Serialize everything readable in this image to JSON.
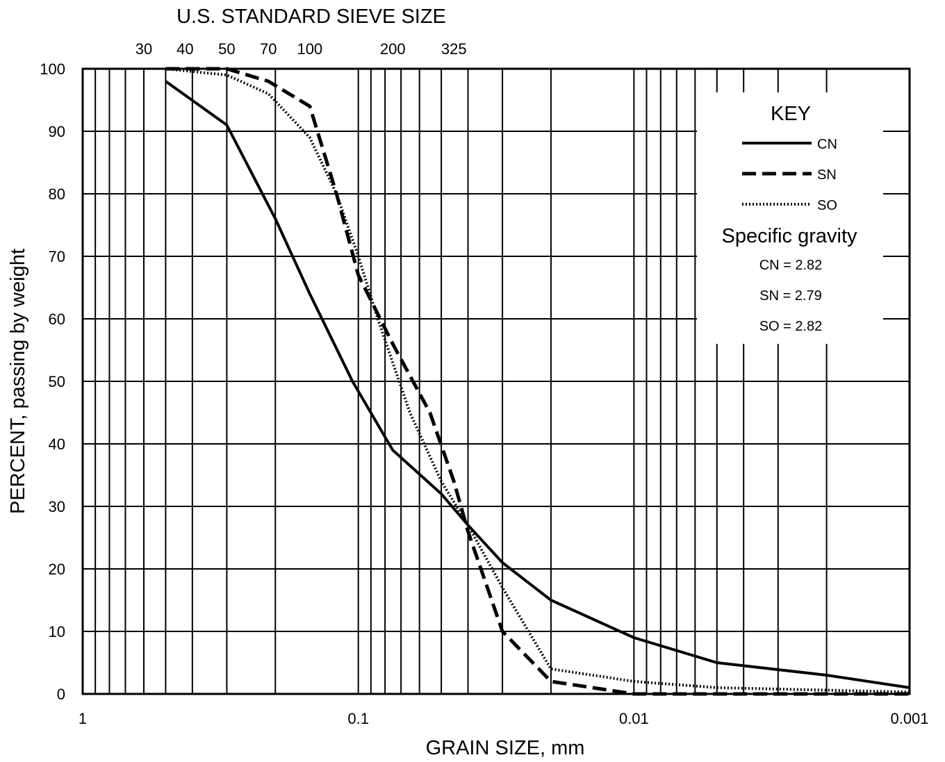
{
  "chart_data": {
    "type": "line",
    "title": "",
    "top_axis": {
      "title": "U.S. STANDARD SIEVE SIZE",
      "ticks": [
        {
          "label": "30",
          "x": 0.6
        },
        {
          "label": "40",
          "x": 0.425
        },
        {
          "label": "50",
          "x": 0.3
        },
        {
          "label": "70",
          "x": 0.212
        },
        {
          "label": "100",
          "x": 0.15
        },
        {
          "label": "200",
          "x": 0.075
        },
        {
          "label": "325",
          "x": 0.045
        }
      ]
    },
    "xlabel": "GRAIN SIZE, mm",
    "ylabel": "PERCENT, passing by weight",
    "xscale": "log",
    "xreversed": true,
    "xlim": [
      1,
      0.001
    ],
    "ylim": [
      0,
      100
    ],
    "grid": true,
    "x_tick_labels": [
      {
        "label": "1",
        "x": 1
      },
      {
        "label": "0.1",
        "x": 0.1
      },
      {
        "label": "0.01",
        "x": 0.01
      },
      {
        "label": "0.001",
        "x": 0.001
      }
    ],
    "y_tick_labels": [
      "0",
      "10",
      "20",
      "30",
      "40",
      "50",
      "60",
      "70",
      "80",
      "90",
      "100"
    ],
    "series": [
      {
        "name": "CN",
        "style": "solid",
        "points": [
          [
            0.5,
            98
          ],
          [
            0.3,
            91
          ],
          [
            0.2,
            76
          ],
          [
            0.15,
            64
          ],
          [
            0.105,
            50
          ],
          [
            0.075,
            39
          ],
          [
            0.05,
            32
          ],
          [
            0.04,
            27
          ],
          [
            0.03,
            21
          ],
          [
            0.02,
            15
          ],
          [
            0.01,
            9
          ],
          [
            0.005,
            5
          ],
          [
            0.002,
            3
          ],
          [
            0.001,
            1
          ]
        ]
      },
      {
        "name": "SN",
        "style": "dashed",
        "points": [
          [
            0.5,
            100
          ],
          [
            0.3,
            100
          ],
          [
            0.212,
            98
          ],
          [
            0.15,
            94
          ],
          [
            0.12,
            80
          ],
          [
            0.1,
            67
          ],
          [
            0.075,
            56
          ],
          [
            0.055,
            45
          ],
          [
            0.045,
            34
          ],
          [
            0.04,
            26
          ],
          [
            0.03,
            10
          ],
          [
            0.02,
            2
          ],
          [
            0.01,
            0
          ],
          [
            0.001,
            0
          ]
        ]
      },
      {
        "name": "SO",
        "style": "dotted",
        "points": [
          [
            0.5,
            100
          ],
          [
            0.3,
            99
          ],
          [
            0.212,
            96
          ],
          [
            0.15,
            89
          ],
          [
            0.12,
            80
          ],
          [
            0.1,
            70
          ],
          [
            0.085,
            60
          ],
          [
            0.075,
            53
          ],
          [
            0.065,
            45
          ],
          [
            0.05,
            34
          ],
          [
            0.04,
            27
          ],
          [
            0.03,
            17
          ],
          [
            0.02,
            4
          ],
          [
            0.01,
            2
          ],
          [
            0.005,
            1
          ],
          [
            0.001,
            0.3
          ]
        ]
      }
    ],
    "legend": {
      "placement": "top-right",
      "title": "KEY",
      "subtitle": "Specific gravity",
      "specific_gravity": [
        "CN = 2.82",
        "SN = 2.79",
        "SO = 2.82"
      ]
    }
  }
}
